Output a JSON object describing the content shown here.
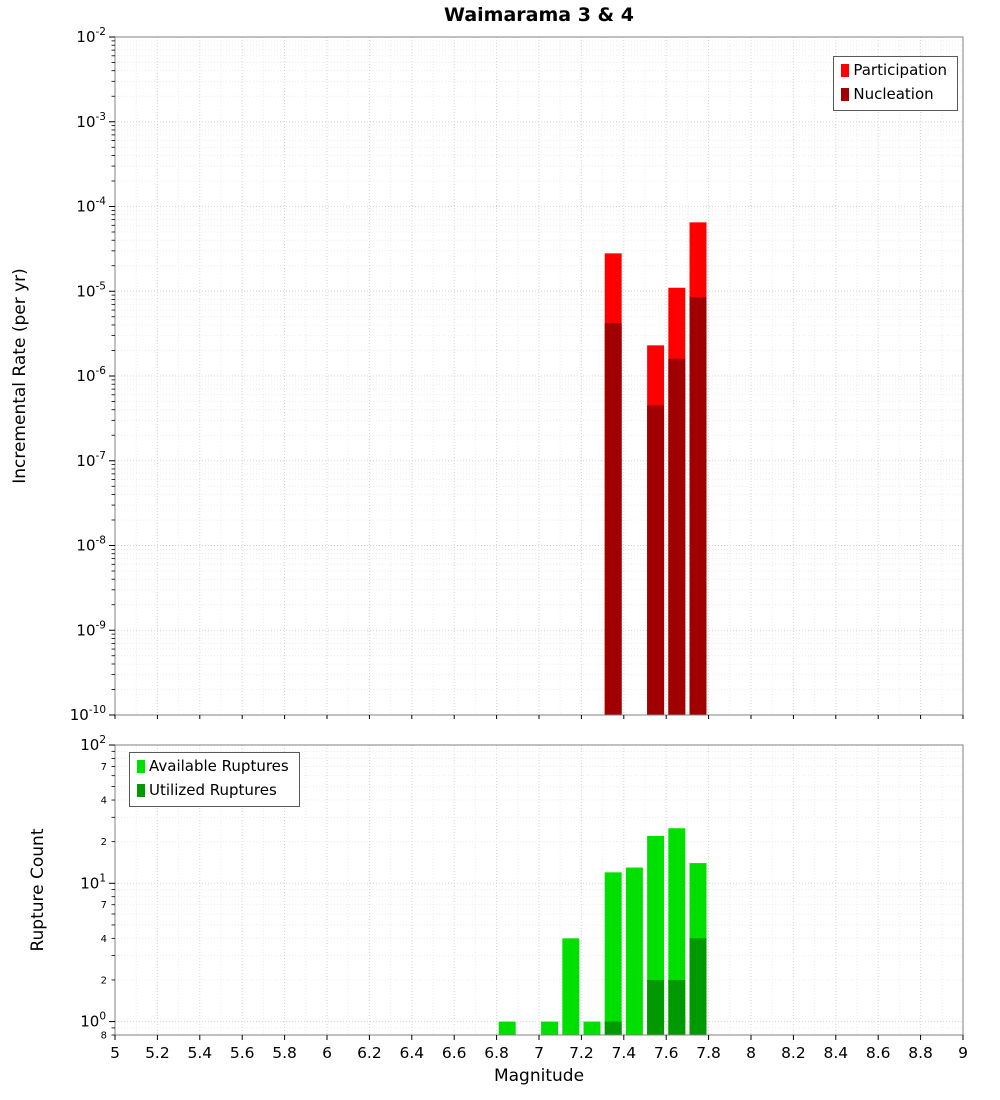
{
  "chart_data": [
    {
      "type": "bar",
      "title": "Waimarama 3 & 4",
      "ylabel": "Incremental Rate (per yr)",
      "yscale": "log",
      "xlim": [
        5,
        9
      ],
      "ylim": [
        1e-10,
        0.01
      ],
      "x_tick_step": 0.2,
      "y_tick_exponents": [
        -2,
        -3,
        -4,
        -5,
        -6,
        -7,
        -8,
        -9,
        -10
      ],
      "bar_width": 0.08,
      "grid": true,
      "legend_position": "top-right",
      "series": [
        {
          "name": "Participation",
          "color": "#ff0000",
          "x": [
            7.35,
            7.55,
            7.65,
            7.75
          ],
          "values": [
            2.8e-05,
            2.3e-06,
            1.1e-05,
            6.5e-05
          ]
        },
        {
          "name": "Nucleation",
          "color": "#a00000",
          "x": [
            7.35,
            7.55,
            7.65,
            7.75
          ],
          "values": [
            4.2e-06,
            4.5e-07,
            1.6e-06,
            8.5e-06
          ]
        }
      ]
    },
    {
      "type": "bar",
      "ylabel": "Rupture Count",
      "xlabel": "Magnitude",
      "yscale": "log",
      "xlim": [
        5,
        9
      ],
      "ylim": [
        0.8,
        100
      ],
      "x_tick_step": 0.2,
      "x_tick_labels": [
        "5",
        "5.2",
        "5.4",
        "5.6",
        "5.8",
        "6",
        "6.2",
        "6.4",
        "6.6",
        "6.8",
        "7",
        "7.2",
        "7.4",
        "7.6",
        "7.8",
        "8",
        "8.2",
        "8.4",
        "8.6",
        "8.8",
        "9"
      ],
      "y_tick_exponents": [
        2,
        1,
        0
      ],
      "y_minor_labeled": [
        2,
        4,
        7
      ],
      "y_bottom_label": "8",
      "bar_width": 0.08,
      "grid": true,
      "legend_position": "top-left",
      "series": [
        {
          "name": "Available Ruptures",
          "color": "#00e000",
          "x": [
            6.85,
            7.05,
            7.15,
            7.25,
            7.35,
            7.45,
            7.55,
            7.65,
            7.75
          ],
          "values": [
            1,
            1,
            4,
            1,
            12,
            13,
            22,
            25,
            14
          ]
        },
        {
          "name": "Utilized Ruptures",
          "color": "#009900",
          "x": [
            7.35,
            7.55,
            7.65,
            7.75
          ],
          "values": [
            1,
            2,
            2,
            4
          ]
        }
      ]
    }
  ]
}
